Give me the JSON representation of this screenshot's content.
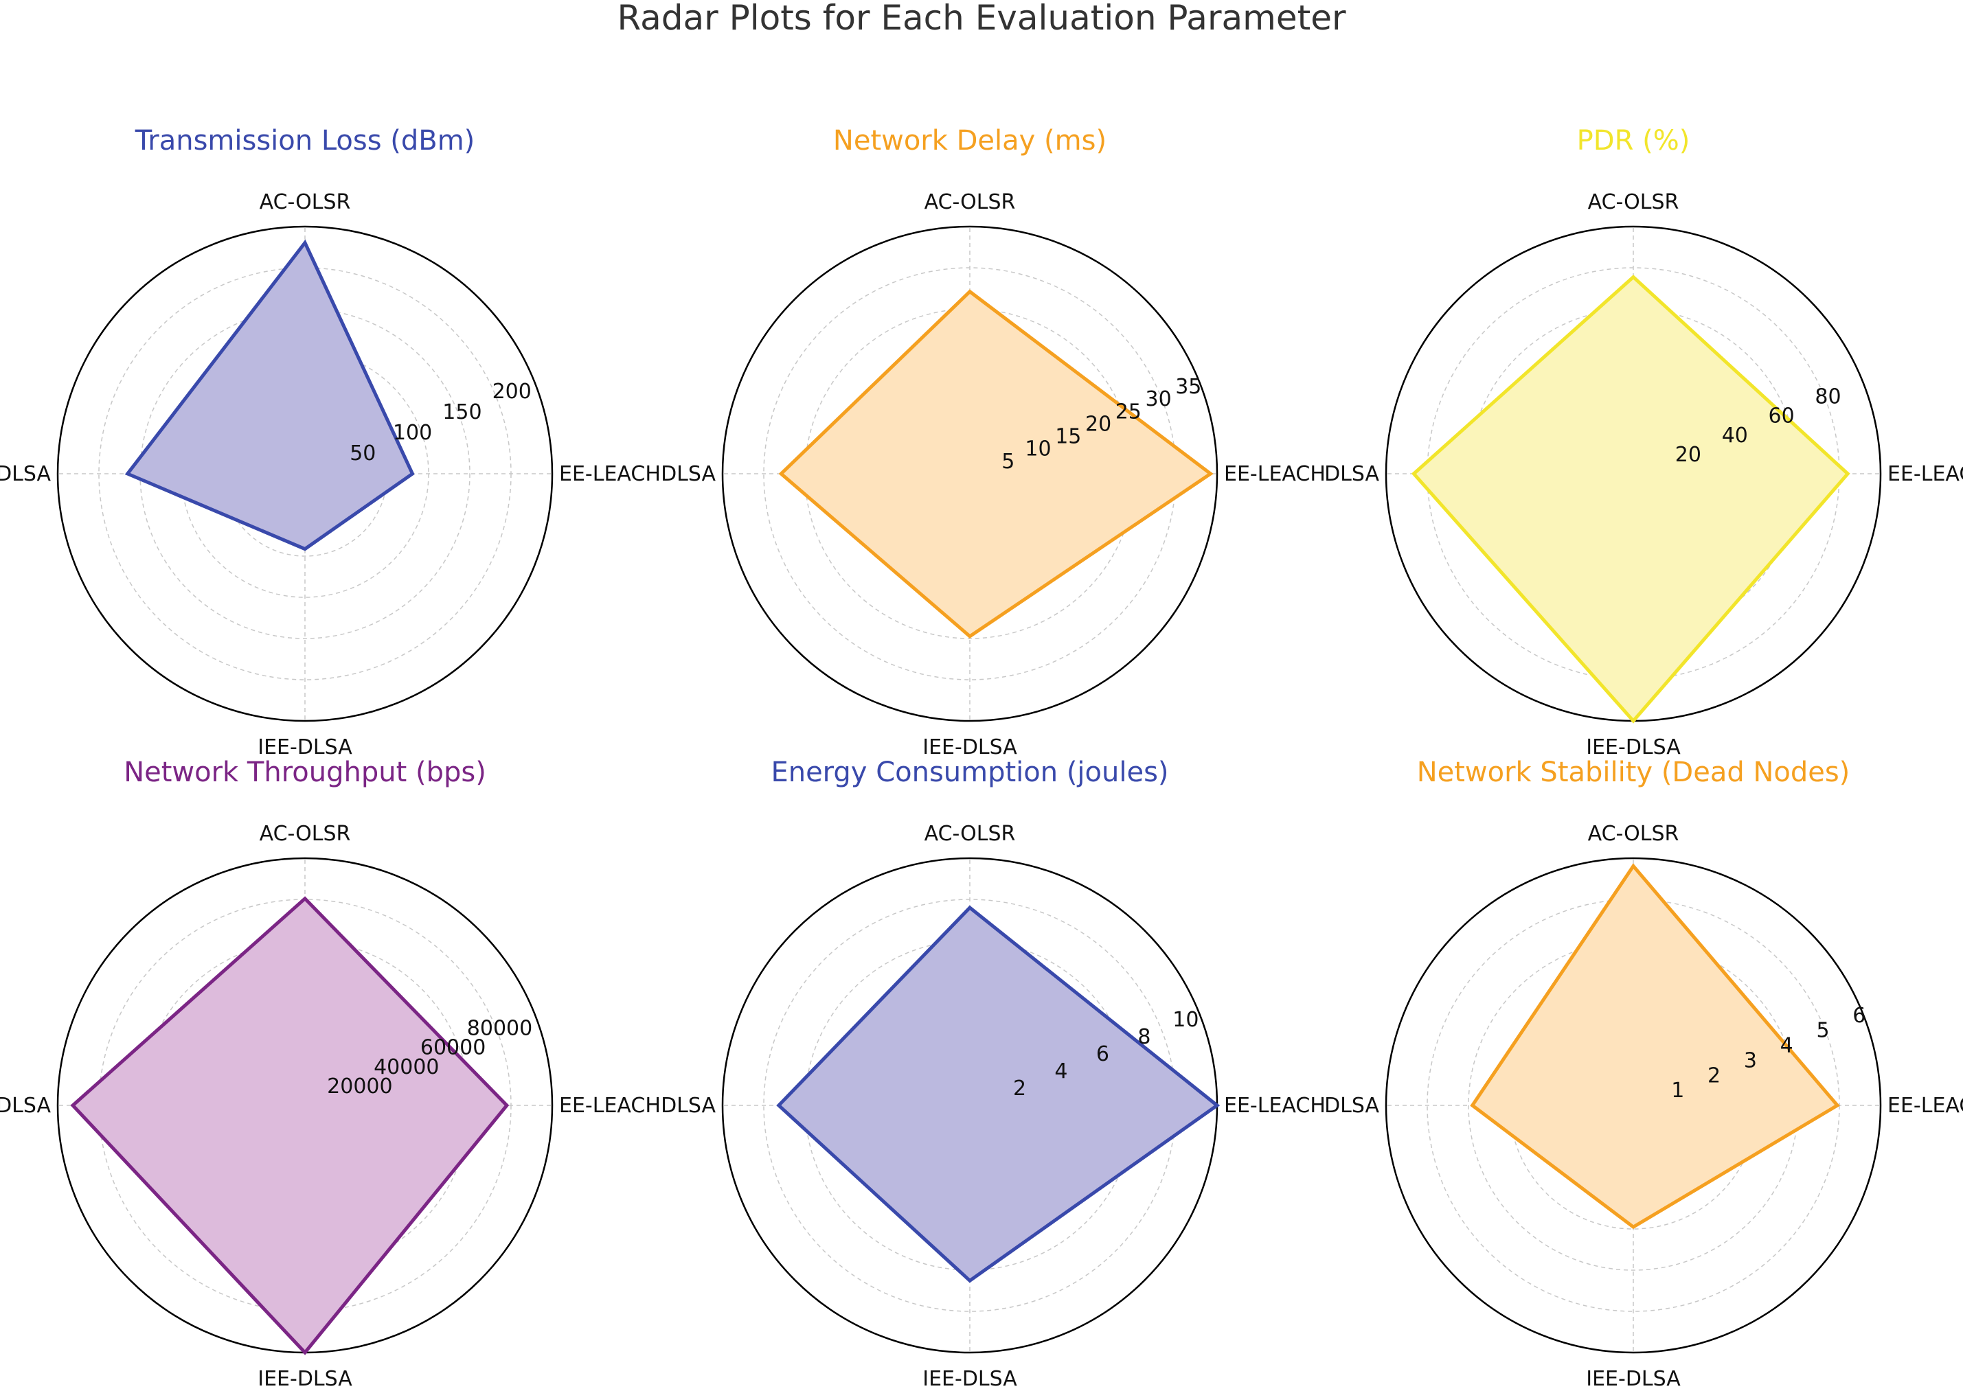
{
  "chart_data": {
    "title": "Radar Plots for Each Evaluation Parameter",
    "charts": [
      {
        "type": "radar",
        "title": "Transmission Loss (dBm)",
        "color": "#3949AB",
        "fill": "#BBB9DF",
        "categories": [
          "EE-LEACH",
          "AC-OLSR",
          "DLSA",
          "IEE-DLSA"
        ],
        "values": [
          100,
          215,
          165,
          70
        ],
        "rmax": 230,
        "ticks": [
          "50",
          "100",
          "150",
          "200"
        ],
        "tick_values": [
          50,
          100,
          150,
          200
        ]
      },
      {
        "type": "radar",
        "title": "Network Delay (ms)",
        "color": "#F5A020",
        "fill": "#FEE3BD",
        "categories": [
          "EE-LEACH",
          "AC-OLSR",
          "DLSA",
          "IEE-DLSA"
        ],
        "values": [
          37,
          28,
          29,
          25
        ],
        "rmax": 38,
        "ticks": [
          "5",
          "10",
          "15",
          "20",
          "25",
          "30",
          "35"
        ],
        "tick_values": [
          5,
          10,
          15,
          20,
          25,
          30,
          35
        ]
      },
      {
        "type": "radar",
        "title": "PDR (%)",
        "color": "#F2E52B",
        "fill": "#FBF5BA",
        "categories": [
          "EE-LEACH",
          "AC-OLSR",
          "DLSA",
          "IEE-DLSA"
        ],
        "values": [
          85,
          78,
          87,
          98
        ],
        "rmax": 98,
        "ticks": [
          "20",
          "40",
          "60",
          "80"
        ],
        "tick_values": [
          20,
          40,
          60,
          80
        ]
      },
      {
        "type": "radar",
        "title": "Network Throughput (bps)",
        "color": "#7B2585",
        "fill": "#DDBBDC",
        "categories": [
          "EE-LEACH",
          "AC-OLSR",
          "DLSA",
          "IEE-DLSA"
        ],
        "values": [
          80000,
          82000,
          92000,
          98000
        ],
        "rmax": 98000,
        "ticks": [
          "20000",
          "40000",
          "60000",
          "80000"
        ],
        "tick_values": [
          20000,
          40000,
          60000,
          80000
        ]
      },
      {
        "type": "radar",
        "title": "Energy Consumption (joules)",
        "color": "#3949AB",
        "fill": "#BBB9DF",
        "categories": [
          "EE-LEACH",
          "AC-OLSR",
          "DLSA",
          "IEE-DLSA"
        ],
        "values": [
          11,
          8.8,
          8.5,
          7.8
        ],
        "rmax": 11,
        "ticks": [
          "2",
          "4",
          "6",
          "8",
          "10"
        ],
        "tick_values": [
          2,
          4,
          6,
          8,
          10
        ]
      },
      {
        "type": "radar",
        "title": "Network Stability (Dead Nodes)",
        "color": "#F5A020",
        "fill": "#FEE3BD",
        "categories": [
          "EE-LEACH",
          "AC-OLSR",
          "DLSA",
          "IEE-DLSA"
        ],
        "values": [
          5.2,
          6.1,
          4.1,
          3.1
        ],
        "rmax": 6.3,
        "ticks": [
          "1",
          "2",
          "3",
          "4",
          "5",
          "6"
        ],
        "tick_values": [
          1,
          2,
          3,
          4,
          5,
          6
        ]
      }
    ]
  }
}
